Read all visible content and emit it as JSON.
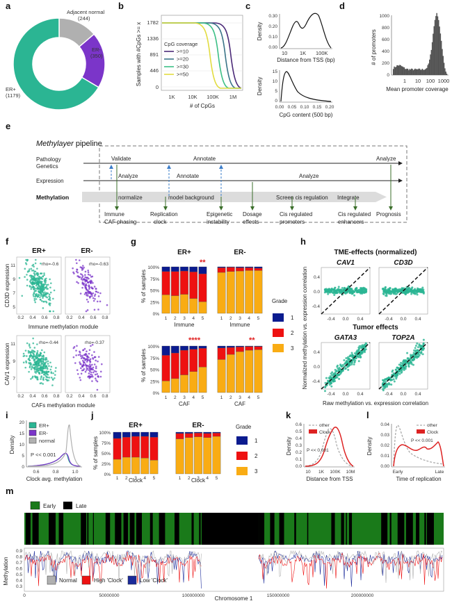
{
  "panel_labels": [
    "a",
    "b",
    "c",
    "d",
    "e",
    "f",
    "g",
    "h",
    "i",
    "j",
    "k",
    "l",
    "m"
  ],
  "colors": {
    "erpos": "#2bb593",
    "erneg": "#7b35c9",
    "normal": "#b0b0b0",
    "grade1": "#0b1b8f",
    "grade2": "#ee1111",
    "grade3": "#f9ac14",
    "clock": "#dd2222",
    "other": "#aaaaaa",
    "early": "#1a7a1a",
    "late": "#000000"
  },
  "a": {
    "slices": [
      {
        "label": "Adjacent normal",
        "count": "(244)",
        "value": 244,
        "color": "#b0b0b0"
      },
      {
        "label": "ER-",
        "count": "(350)",
        "value": 350,
        "color": "#7b35c9"
      },
      {
        "label": "ER+",
        "count": "(1179)",
        "value": 1179,
        "color": "#2bb593"
      }
    ]
  },
  "b": {
    "ylabel": "Samples with #CpGs >= x",
    "xlabel": "# of CpGs",
    "yticks": [
      "1782",
      "1336",
      "891",
      "446",
      "0"
    ],
    "xticks": [
      "1K",
      "10K",
      "100K",
      "1M"
    ],
    "legend_title": "CpG coverage",
    "legend": [
      {
        "label": ">=10",
        "color": "#4b2a78"
      },
      {
        "label": ">=20",
        "color": "#3a7488"
      },
      {
        "label": ">=30",
        "color": "#3cbf86"
      },
      {
        "label": ">=50",
        "color": "#e2dc40"
      }
    ],
    "chart_data": {
      "type": "line",
      "xlabel": "# of CpGs",
      "ylabel": "Samples with #CpGs >= x",
      "ylim": [
        0,
        1782
      ],
      "xscale": "log",
      "series": [
        {
          "name": ">=10",
          "drop_at": "1M"
        },
        {
          "name": ">=20",
          "drop_at": "700K"
        },
        {
          "name": ">=30",
          "drop_at": "400K"
        },
        {
          "name": ">=50",
          "drop_at": "200K"
        }
      ]
    }
  },
  "c": {
    "top": {
      "ylabel": "Density",
      "xlabel": "Distance from TSS (bp)",
      "xticks": [
        "10",
        "1K",
        "100K"
      ],
      "yticks": [
        "0.00",
        "0.10",
        "0.20",
        "0.30"
      ]
    },
    "bottom": {
      "ylabel": "Density",
      "xlabel": "CpG content (500 bp)",
      "xticks": [
        "0.00",
        "0.05",
        "0.10",
        "0.15",
        "0.20"
      ],
      "yticks": [
        "0",
        "5",
        "10",
        "15"
      ]
    }
  },
  "d": {
    "ylabel": "# of promoters",
    "xlabel": "Mean promoter coverage",
    "yticks": [
      "1000",
      "800",
      "600",
      "400",
      "200",
      "0"
    ],
    "xticks": [
      "1",
      "10",
      "100",
      "1000"
    ],
    "chart_data": {
      "type": "bar",
      "xlabel": "Mean promoter coverage",
      "ylabel": "# of promoters",
      "ylim": [
        0,
        1000
      ]
    }
  },
  "e": {
    "title_italic": "Methylayer",
    "title_rest": " pipeline",
    "rows": [
      "Pathology",
      "Genetics",
      "Expression",
      "Methylation"
    ],
    "row1_labels": [
      "Validate",
      "Annotate",
      "Analyze"
    ],
    "row2_labels": [
      "Analyze",
      "Annotate",
      "Analyze"
    ],
    "row3_labels": [
      "normalize",
      "model background",
      "Screen cis regulation",
      "Integrate"
    ],
    "outputs": [
      "Immune",
      "CAF phasing",
      "Replication",
      "clock",
      "Epigenetic",
      "instability",
      "Dosage",
      "effects",
      "Cis regulated",
      "promoters",
      "Cis regulated",
      "enhancers",
      "Prognosis"
    ]
  },
  "f": {
    "top": {
      "titles": [
        "ER+",
        "ER-"
      ],
      "ylabel": "CD3D expression",
      "xlabel": "Immune methylation module",
      "rho": [
        "rho=-0.6",
        "rho=-0.63"
      ],
      "yticks": [
        "11",
        "9",
        "7",
        "5"
      ],
      "xticks": [
        "0.2",
        "0.4",
        "0.6",
        "0.8"
      ]
    },
    "bottom": {
      "ylabel": "CAV1 expression",
      "xlabel": "CAFs methylation module",
      "rho": [
        "rho=-0.44",
        "rho=-0.37"
      ],
      "yticks": [
        "11",
        "9",
        "7"
      ],
      "xticks": [
        "0.2",
        "0.4",
        "0.6",
        "0.8"
      ]
    }
  },
  "g": {
    "titles": [
      "ER+",
      "ER-"
    ],
    "ylabel": "% of samples",
    "yticks": [
      "100%",
      "75%",
      "50%",
      "25%",
      "0%"
    ],
    "xlabel_top": "Immune",
    "xlabel_bottom": "CAF",
    "stars": [
      "**",
      "",
      "****",
      "**"
    ],
    "legend_title": "Grade",
    "legend": [
      "1",
      "2",
      "3"
    ],
    "chart_data": [
      {
        "type": "bar",
        "title": "ER+ Immune",
        "categories": [
          "1",
          "2",
          "3",
          "4",
          "5"
        ],
        "series": [
          {
            "name": "1",
            "values": [
              0.1,
              0.1,
              0.09,
              0.11,
              0.15
            ]
          },
          {
            "name": "2",
            "values": [
              0.5,
              0.52,
              0.5,
              0.57,
              0.6
            ]
          },
          {
            "name": "3",
            "values": [
              0.4,
              0.38,
              0.41,
              0.32,
              0.25
            ]
          }
        ]
      },
      {
        "type": "bar",
        "title": "ER- Immune",
        "categories": [
          "1",
          "2",
          "3",
          "4",
          "5"
        ],
        "series": [
          {
            "name": "1",
            "values": [
              0.02,
              0.01,
              0.02,
              0.02,
              0.03
            ]
          },
          {
            "name": "2",
            "values": [
              0.1,
              0.09,
              0.07,
              0.06,
              0.05
            ]
          },
          {
            "name": "3",
            "values": [
              0.88,
              0.9,
              0.91,
              0.92,
              0.92
            ]
          }
        ]
      },
      {
        "type": "bar",
        "title": "ER+ CAF",
        "categories": [
          "1",
          "2",
          "3",
          "4",
          "5"
        ],
        "series": [
          {
            "name": "1",
            "values": [
              0.2,
              0.15,
              0.09,
              0.07,
              0.05
            ]
          },
          {
            "name": "2",
            "values": [
              0.55,
              0.55,
              0.53,
              0.48,
              0.4
            ]
          },
          {
            "name": "3",
            "values": [
              0.25,
              0.3,
              0.38,
              0.45,
              0.55
            ]
          }
        ]
      },
      {
        "type": "bar",
        "title": "ER- CAF",
        "categories": [
          "1",
          "2",
          "3",
          "4",
          "5"
        ],
        "series": [
          {
            "name": "1",
            "values": [
              0.04,
              0.03,
              0.02,
              0.01,
              0.01
            ]
          },
          {
            "name": "2",
            "values": [
              0.25,
              0.15,
              0.1,
              0.08,
              0.07
            ]
          },
          {
            "name": "3",
            "values": [
              0.71,
              0.82,
              0.88,
              0.91,
              0.92
            ]
          }
        ]
      }
    ]
  },
  "h": {
    "title1": "TME-effects (normalized)",
    "title2": "Tumor effects",
    "genes": [
      "CAV1",
      "CD3D",
      "GATA3",
      "TOP2A"
    ],
    "ylabel": "Normalized methylation vs. expression correlation",
    "xlabel": "Raw methylation vs. expression correlation",
    "ticks": [
      "-0.4",
      "0.0",
      "0.4"
    ]
  },
  "i": {
    "ylabel": "Density",
    "xlabel": "Clock avg. methylation",
    "legend": [
      "ER+",
      "ER-",
      "normal"
    ],
    "pval": "P << 0.001",
    "yticks": [
      "0",
      "5",
      "10",
      "15",
      "20"
    ],
    "xticks": [
      "0.6",
      "0.8",
      "1.0"
    ]
  },
  "j": {
    "titles": [
      "ER+",
      "ER-"
    ],
    "ylabel": "% of samples",
    "xlabel": "Clock",
    "yticks": [
      "100%",
      "75%",
      "50%",
      "25%",
      "0%"
    ],
    "legend_title": "Grade",
    "legend": [
      "1",
      "2",
      "3"
    ],
    "chart_data": [
      {
        "type": "bar",
        "title": "ER+ Clock",
        "categories": [
          "1",
          "2",
          "3",
          "4",
          "5"
        ],
        "series": [
          {
            "name": "1",
            "values": [
              0.15,
              0.12,
              0.1,
              0.1,
              0.12
            ]
          },
          {
            "name": "2",
            "values": [
              0.5,
              0.48,
              0.5,
              0.52,
              0.55
            ]
          },
          {
            "name": "3",
            "values": [
              0.35,
              0.4,
              0.4,
              0.38,
              0.33
            ]
          }
        ]
      },
      {
        "type": "bar",
        "title": "ER- Clock",
        "categories": [
          "1",
          "2",
          "3",
          "4",
          "5"
        ],
        "series": [
          {
            "name": "1",
            "values": [
              0.03,
              0.03,
              0.02,
              0.03,
              0.02
            ]
          },
          {
            "name": "2",
            "values": [
              0.13,
              0.1,
              0.09,
              0.1,
              0.08
            ]
          },
          {
            "name": "3",
            "values": [
              0.84,
              0.87,
              0.89,
              0.87,
              0.9
            ]
          }
        ]
      }
    ]
  },
  "k": {
    "ylabel": "Density",
    "xlabel": "Distance from TSS",
    "legend": [
      "other",
      "Clock"
    ],
    "pval": "P << 0.001",
    "xticks": [
      "10",
      "1K",
      "100K",
      "10M"
    ],
    "yticks": [
      "0.0",
      "0.1",
      "0.2",
      "0.3",
      "0.4",
      "0.5",
      "0.6"
    ]
  },
  "l": {
    "ylabel": "Density",
    "xlabel": "Time of replication",
    "legend": [
      "other",
      "Clock"
    ],
    "pval": "P << 0.001",
    "xticks": [
      "Early",
      "Late"
    ],
    "yticks": [
      "0.00",
      "0.01",
      "0.02",
      "0.03",
      "0.04"
    ]
  },
  "m": {
    "legend_top": [
      "Early",
      "Late"
    ],
    "legend_bottom": [
      "Normal",
      "High 'Clock'",
      "Low 'Clock'"
    ],
    "ylabel": "Methylation",
    "xlabel": "Chromosome 1",
    "yticks": [
      "0.9",
      "0.8",
      "0.7",
      "0.6",
      "0.5",
      "0.4",
      "0.3"
    ],
    "xticks": [
      "0",
      "50000000",
      "100000000",
      "150000000",
      "200000000"
    ]
  }
}
